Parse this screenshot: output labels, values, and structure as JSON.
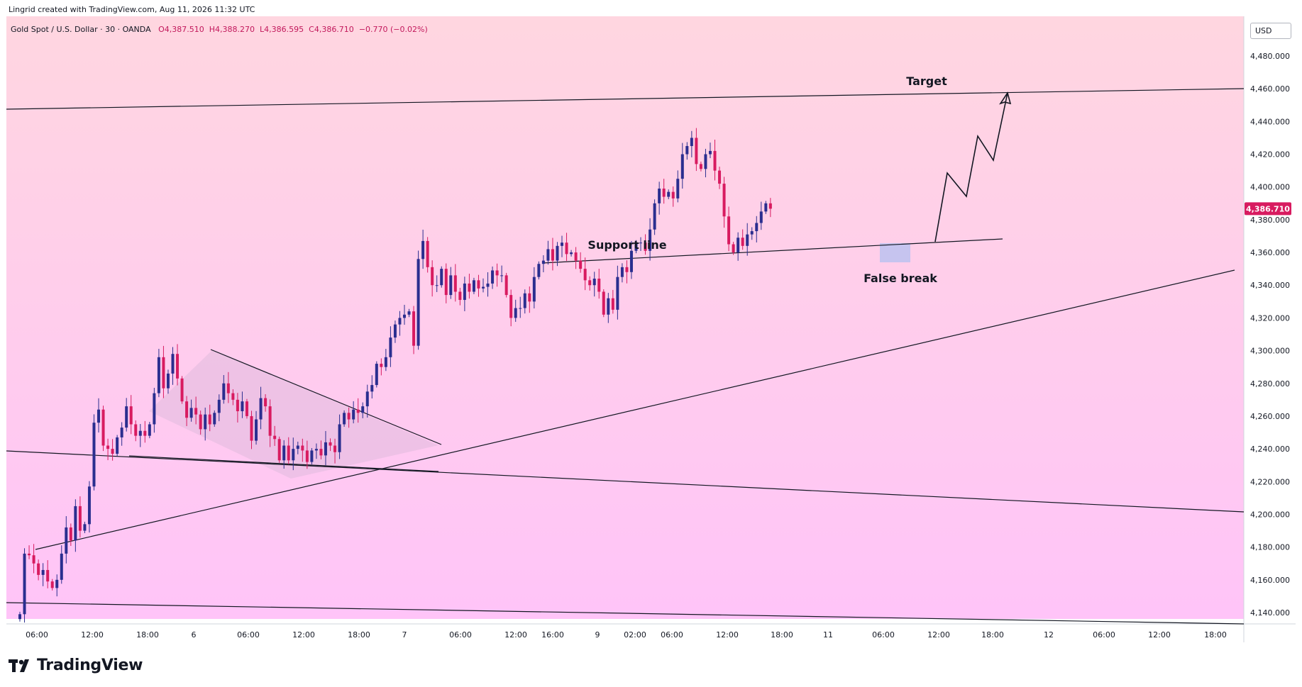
{
  "header": {
    "credit": "Lingrid created with TradingView.com, Aug 11, 2026 11:32 UTC",
    "symbol": "Gold Spot / U.S. Dollar · 30 · OANDA",
    "open": "O4,387.510",
    "high": "H4,388.270",
    "low": "L4,386.595",
    "close": "C4,386.710",
    "change": "−0.770 (−0.02%)"
  },
  "currency": "USD",
  "brand": "TradingView",
  "colors": {
    "bull": "#2a2e8f",
    "bear": "#d81b60",
    "bg_top": "#ffd6e0",
    "bg_bottom": "#ffc4f8",
    "price_tag": "#d81b60"
  },
  "chart_data": {
    "type": "candlestick",
    "ylim": [
      4126,
      4510
    ],
    "y_ticks": [
      4140,
      4160,
      4180,
      4200,
      4220,
      4240,
      4260,
      4280,
      4300,
      4320,
      4340,
      4360,
      4380,
      4400,
      4420,
      4440,
      4460,
      4480
    ],
    "x_tick_labels": [
      "06:00",
      "12:00",
      "18:00",
      "6",
      "06:00",
      "12:00",
      "18:00",
      "7",
      "06:00",
      "12:00",
      "16:00",
      "9",
      "02:00",
      "06:00",
      "12:00",
      "18:00",
      "11",
      "06:00",
      "12:00",
      "18:00",
      "12",
      "06:00",
      "12:00",
      "18:00"
    ],
    "last_price": "4,386.710",
    "closes": [
      4139,
      4176,
      4175,
      4170,
      4163,
      4166,
      4159,
      4155,
      4160,
      4176,
      4192,
      4184,
      4205,
      4190,
      4194,
      4217,
      4256,
      4264,
      4242,
      4240,
      4237,
      4247,
      4253,
      4266,
      4255,
      4248,
      4251,
      4248,
      4255,
      4274,
      4296,
      4277,
      4286,
      4298,
      4283,
      4269,
      4259,
      4265,
      4261,
      4252,
      4261,
      4255,
      4262,
      4270,
      4280,
      4274,
      4270,
      4263,
      4269,
      4260,
      4245,
      4258,
      4271,
      4266,
      4248,
      4246,
      4233,
      4242,
      4233,
      4240,
      4242,
      4239,
      4232,
      4239,
      4240,
      4236,
      4244,
      4242,
      4238,
      4255,
      4262,
      4258,
      4264,
      4262,
      4266,
      4275,
      4279,
      4292,
      4290,
      4296,
      4308,
      4316,
      4320,
      4322,
      4324,
      4303,
      4356,
      4367,
      4351,
      4340,
      4340,
      4350,
      4334,
      4346,
      4336,
      4331,
      4341,
      4336,
      4343,
      4338,
      4339,
      4341,
      4349,
      4346,
      4346,
      4334,
      4320,
      4326,
      4326,
      4335,
      4330,
      4345,
      4353,
      4355,
      4362,
      4355,
      4364,
      4366,
      4359,
      4360,
      4355,
      4350,
      4343,
      4340,
      4344,
      4336,
      4322,
      4332,
      4325,
      4345,
      4351,
      4348,
      4361,
      4366,
      4366,
      4361,
      4374,
      4390,
      4399,
      4394,
      4397,
      4393,
      4405,
      4420,
      4425,
      4430,
      4414,
      4411,
      4420,
      4422,
      4410,
      4402,
      4382,
      4365,
      4360,
      4369,
      4364,
      4371,
      4373,
      4378,
      4385,
      4390,
      4386.71
    ],
    "annotations": {
      "target_label": "Target",
      "support_label": "Support line",
      "false_break_label": "False break"
    }
  }
}
